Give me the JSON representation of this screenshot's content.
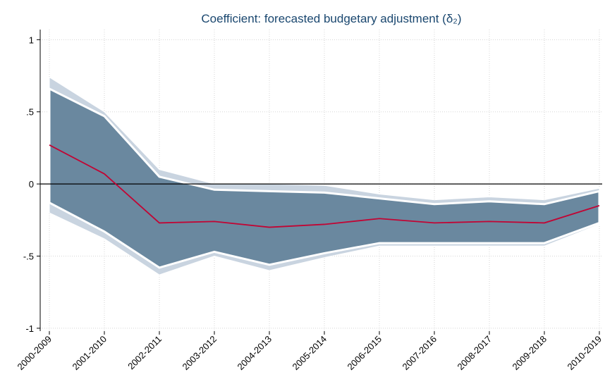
{
  "chart_data": {
    "type": "band-line",
    "title": "Coefficient: forecasted budgetary adjustment (δ₂)",
    "categories": [
      "2000-2009",
      "2001-2010",
      "2002-2011",
      "2003-2012",
      "2004-2013",
      "2005-2014",
      "2006-2015",
      "2007-2016",
      "2008-2017",
      "2009-2018",
      "2010-2019"
    ],
    "series": [
      {
        "color": "#c10534",
        "values": [
          0.27,
          0.07,
          -0.27,
          -0.26,
          -0.3,
          -0.28,
          -0.24,
          -0.27,
          -0.26,
          -0.27,
          -0.15
        ]
      }
    ],
    "bands": [
      {
        "color": "#c9d4e0",
        "upper": [
          0.74,
          0.5,
          0.1,
          0.0,
          0.0,
          -0.01,
          -0.07,
          -0.11,
          -0.09,
          -0.11,
          -0.03
        ],
        "lower": [
          -0.2,
          -0.38,
          -0.63,
          -0.5,
          -0.6,
          -0.51,
          -0.43,
          -0.43,
          -0.43,
          -0.43,
          -0.28
        ]
      },
      {
        "color": "#6a889f",
        "upper": [
          0.66,
          0.47,
          0.05,
          -0.04,
          -0.05,
          -0.06,
          -0.1,
          -0.14,
          -0.12,
          -0.14,
          -0.05
        ],
        "lower": [
          -0.13,
          -0.33,
          -0.58,
          -0.47,
          -0.56,
          -0.48,
          -0.41,
          -0.41,
          -0.41,
          -0.41,
          -0.27
        ]
      }
    ],
    "reference_line": 0,
    "ylim": [
      -1.02,
      1.07
    ],
    "yticks": [
      -1,
      {
        "value": -0.5,
        "label": "-.5"
      },
      0,
      {
        "value": 0.5,
        "label": ".5"
      },
      1
    ],
    "grid": true
  }
}
